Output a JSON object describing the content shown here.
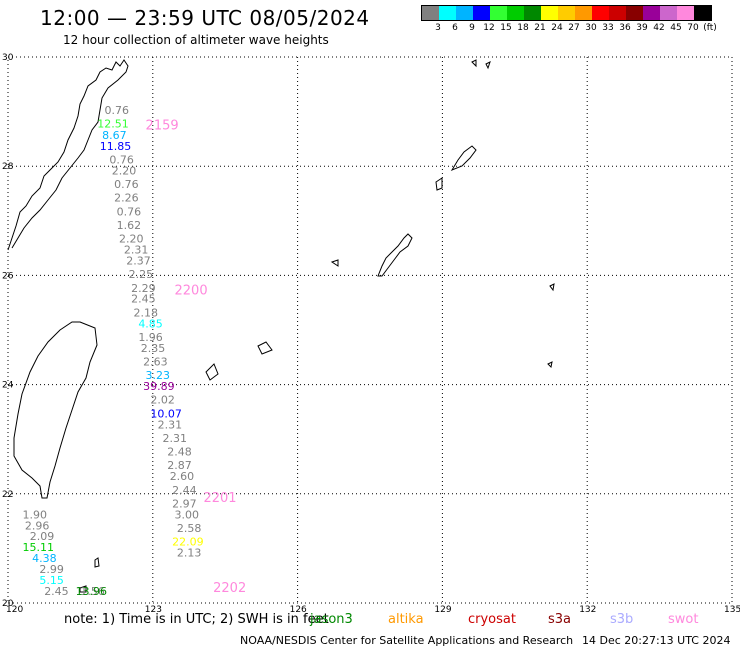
{
  "header": {
    "title": "12:00 — 23:59 UTC 08/05/2024",
    "subtitle": "12 hour collection of altimeter wave heights"
  },
  "color_scale": {
    "swatches": [
      "#808080",
      "#00ffff",
      "#00b4ff",
      "#0000ff",
      "#33ff33",
      "#00cc00",
      "#008800",
      "#ffff00",
      "#ffcc00",
      "#ff9900",
      "#ff0000",
      "#cc0000",
      "#880000",
      "#990099",
      "#cc66cc",
      "#ff88dd",
      "#000000"
    ],
    "labels": [
      "3",
      "6",
      "9",
      "12",
      "15",
      "18",
      "21",
      "24",
      "27",
      "30",
      "33",
      "36",
      "39",
      "42",
      "45",
      "70",
      "(ft)"
    ]
  },
  "axes": {
    "lat_labels": [
      "30",
      "28",
      "26",
      "24",
      "22",
      "20"
    ],
    "lon_labels": [
      "120",
      "123",
      "126",
      "129",
      "132",
      "135"
    ]
  },
  "chart_data": {
    "type": "map",
    "lon_range": [
      120,
      135
    ],
    "lat_range": [
      20,
      30
    ],
    "grid": true,
    "time_labels": [
      {
        "text": "2159",
        "lon": 122.85,
        "lat": 28.67
      },
      {
        "text": "2200",
        "lon": 123.45,
        "lat": 25.65
      },
      {
        "text": "2201",
        "lon": 124.05,
        "lat": 21.85
      },
      {
        "text": "2202",
        "lon": 124.25,
        "lat": 20.2
      }
    ],
    "tracks": [
      {
        "points": [
          {
            "v": "0.76",
            "c": "#808080",
            "lon": 122.0,
            "lat": 28.96
          },
          {
            "v": "12.51",
            "c": "#33ff33",
            "lon": 121.85,
            "lat": 28.71
          },
          {
            "v": "8.67",
            "c": "#00b4ff",
            "lon": 121.95,
            "lat": 28.5
          },
          {
            "v": "11.85",
            "c": "#0000ff",
            "lon": 121.9,
            "lat": 28.3
          },
          {
            "v": "0.76",
            "c": "#808080",
            "lon": 122.1,
            "lat": 28.05
          },
          {
            "v": "2.20",
            "c": "#808080",
            "lon": 122.15,
            "lat": 27.85
          },
          {
            "v": "0.76",
            "c": "#808080",
            "lon": 122.2,
            "lat": 27.6
          },
          {
            "v": "2.26",
            "c": "#808080",
            "lon": 122.2,
            "lat": 27.35
          },
          {
            "v": "0.76",
            "c": "#808080",
            "lon": 122.25,
            "lat": 27.1
          },
          {
            "v": "1.62",
            "c": "#808080",
            "lon": 122.25,
            "lat": 26.85
          },
          {
            "v": "2.20",
            "c": "#808080",
            "lon": 122.3,
            "lat": 26.6
          },
          {
            "v": "2.31",
            "c": "#808080",
            "lon": 122.4,
            "lat": 26.4
          },
          {
            "v": "2.37",
            "c": "#808080",
            "lon": 122.45,
            "lat": 26.2
          },
          {
            "v": "2.25",
            "c": "#808080",
            "lon": 122.5,
            "lat": 25.95
          },
          {
            "v": "2.29",
            "c": "#808080",
            "lon": 122.55,
            "lat": 25.7
          },
          {
            "v": "2.45",
            "c": "#808080",
            "lon": 122.55,
            "lat": 25.5
          },
          {
            "v": "2.18",
            "c": "#808080",
            "lon": 122.6,
            "lat": 25.25
          },
          {
            "v": "4.85",
            "c": "#00ffff",
            "lon": 122.7,
            "lat": 25.05
          },
          {
            "v": "1.96",
            "c": "#808080",
            "lon": 122.7,
            "lat": 24.8
          },
          {
            "v": "2.35",
            "c": "#808080",
            "lon": 122.75,
            "lat": 24.6
          },
          {
            "v": "2.63",
            "c": "#808080",
            "lon": 122.8,
            "lat": 24.35
          },
          {
            "v": "3.23",
            "c": "#00b4ff",
            "lon": 122.85,
            "lat": 24.1
          },
          {
            "v": "39.89",
            "c": "#990099",
            "lon": 122.8,
            "lat": 23.9
          },
          {
            "v": "2.02",
            "c": "#808080",
            "lon": 122.95,
            "lat": 23.65
          },
          {
            "v": "10.07",
            "c": "#0000ff",
            "lon": 122.95,
            "lat": 23.4
          },
          {
            "v": "2.31",
            "c": "#808080",
            "lon": 123.1,
            "lat": 23.2
          },
          {
            "v": "2.31",
            "c": "#808080",
            "lon": 123.2,
            "lat": 22.95
          },
          {
            "v": "2.48",
            "c": "#808080",
            "lon": 123.3,
            "lat": 22.7
          },
          {
            "v": "2.87",
            "c": "#808080",
            "lon": 123.3,
            "lat": 22.45
          },
          {
            "v": "2.60",
            "c": "#808080",
            "lon": 123.35,
            "lat": 22.25
          },
          {
            "v": "2.44",
            "c": "#808080",
            "lon": 123.4,
            "lat": 22.0
          },
          {
            "v": "2.97",
            "c": "#808080",
            "lon": 123.4,
            "lat": 21.75
          },
          {
            "v": "3.00",
            "c": "#808080",
            "lon": 123.45,
            "lat": 21.55
          },
          {
            "v": "2.58",
            "c": "#808080",
            "lon": 123.5,
            "lat": 21.3
          },
          {
            "v": "22.09",
            "c": "#ffff00",
            "lon": 123.4,
            "lat": 21.05
          },
          {
            "v": "2.13",
            "c": "#808080",
            "lon": 123.5,
            "lat": 20.85
          }
        ]
      },
      {
        "points": [
          {
            "v": "1.90",
            "c": "#808080",
            "lon": 120.3,
            "lat": 21.55
          },
          {
            "v": "2.96",
            "c": "#808080",
            "lon": 120.35,
            "lat": 21.35
          },
          {
            "v": "2.09",
            "c": "#808080",
            "lon": 120.45,
            "lat": 21.15
          },
          {
            "v": "15.11",
            "c": "#00cc00",
            "lon": 120.3,
            "lat": 20.95
          },
          {
            "v": "4.38",
            "c": "#00b4ff",
            "lon": 120.5,
            "lat": 20.75
          },
          {
            "v": "2.99",
            "c": "#808080",
            "lon": 120.65,
            "lat": 20.55
          },
          {
            "v": "5.15",
            "c": "#00ffff",
            "lon": 120.65,
            "lat": 20.35
          },
          {
            "v": "2.45",
            "c": "#808080",
            "lon": 120.75,
            "lat": 20.15
          },
          {
            "v": "1.56",
            "c": "#808080",
            "lon": 121.5,
            "lat": 20.15
          },
          {
            "v": "13.96",
            "c": "#008800",
            "lon": 121.4,
            "lat": 20.15
          }
        ]
      }
    ]
  },
  "legend": {
    "note": "note:  1) Time is in UTC; 2) SWH is in feet",
    "satellites": [
      {
        "name": "jason3",
        "color": "#008800"
      },
      {
        "name": "altika",
        "color": "#ff9900"
      },
      {
        "name": "cryosat",
        "color": "#cc0000"
      },
      {
        "name": "s3a",
        "color": "#880000"
      },
      {
        "name": "s3b",
        "color": "#aaaaff"
      },
      {
        "name": "swot",
        "color": "#ff88dd"
      }
    ]
  },
  "footer": {
    "source": "NOAA/NESDIS Center for Satellite Applications and Research",
    "generated": "14 Dec 20:27:13 UTC 2024"
  }
}
